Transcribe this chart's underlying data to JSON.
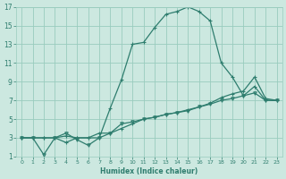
{
  "xlabel": "Humidex (Indice chaleur)",
  "background_color": "#cce8e0",
  "grid_color": "#99ccbe",
  "line_color": "#2e7d6e",
  "xlim": [
    -0.5,
    23.5
  ],
  "ylim": [
    1,
    17
  ],
  "xticks": [
    0,
    1,
    2,
    3,
    4,
    5,
    6,
    7,
    8,
    9,
    10,
    11,
    12,
    13,
    14,
    15,
    16,
    17,
    18,
    19,
    20,
    21,
    22,
    23
  ],
  "yticks": [
    1,
    3,
    5,
    7,
    9,
    11,
    13,
    15,
    17
  ],
  "series1_x": [
    0,
    1,
    2,
    3,
    4,
    5,
    6,
    7,
    8,
    9,
    10,
    11,
    12,
    13,
    14,
    15,
    16,
    17,
    18,
    19,
    20,
    21,
    22,
    23
  ],
  "series1_y": [
    3.0,
    3.0,
    3.0,
    3.0,
    3.2,
    3.0,
    3.0,
    3.0,
    6.2,
    9.2,
    13.0,
    13.2,
    14.8,
    16.2,
    16.5,
    17.0,
    16.5,
    15.5,
    11.0,
    9.5,
    7.5,
    8.5,
    7.0,
    7.0
  ],
  "series1_marker": "+",
  "series2_x": [
    0,
    1,
    2,
    3,
    4,
    5,
    6,
    7,
    8,
    9,
    10,
    11,
    12,
    13,
    14,
    15,
    16,
    17,
    18,
    19,
    20,
    21,
    22,
    23
  ],
  "series2_y": [
    3.0,
    3.0,
    1.2,
    3.0,
    3.5,
    2.8,
    2.2,
    3.0,
    3.5,
    4.5,
    4.7,
    5.0,
    5.2,
    5.5,
    5.7,
    5.9,
    6.3,
    6.6,
    7.0,
    7.2,
    7.5,
    7.8,
    7.0,
    7.0
  ],
  "series2_marker": "v",
  "series3_x": [
    0,
    1,
    2,
    3,
    4,
    5,
    6,
    7,
    8,
    9,
    10,
    11,
    12,
    13,
    14,
    15,
    16,
    17,
    18,
    19,
    20,
    21,
    22,
    23
  ],
  "series3_y": [
    3.0,
    3.0,
    3.0,
    3.0,
    2.5,
    3.0,
    3.0,
    3.5,
    3.5,
    4.0,
    4.5,
    5.0,
    5.2,
    5.5,
    5.7,
    6.0,
    6.3,
    6.7,
    7.3,
    7.7,
    8.0,
    9.5,
    7.2,
    7.0
  ],
  "series3_marker": "+"
}
